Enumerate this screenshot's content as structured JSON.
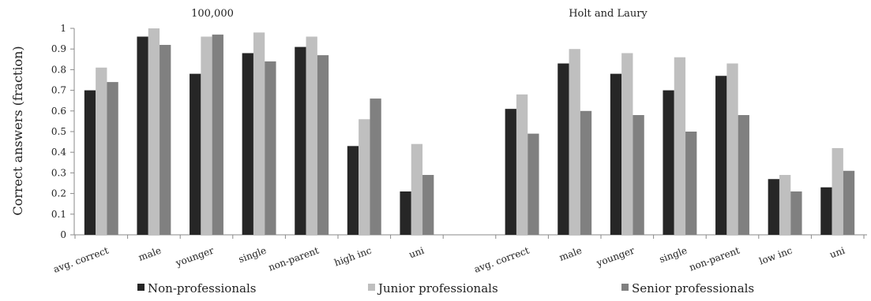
{
  "chart_data": {
    "type": "bar",
    "ylabel": "Correct answers (fraction)",
    "ylim": [
      0,
      1
    ],
    "yticks": [
      "0",
      "0.1",
      "0.2",
      "0.3",
      "0.4",
      "0.5",
      "0.6",
      "0.7",
      "0.8",
      "0.9",
      "1"
    ],
    "grid": false,
    "legend_position": "bottom",
    "series_names": [
      "Non-professionals",
      "Junior professionals",
      "Senior professionals"
    ],
    "colors": [
      "#262626",
      "#bfbfbf",
      "#808080"
    ],
    "panels": [
      {
        "title": "100,000",
        "categories": [
          "avg. correct",
          "male",
          "younger",
          "single",
          "non-parent",
          "high inc",
          "uni"
        ],
        "series": [
          {
            "name": "Non-professionals",
            "values": [
              0.7,
              0.96,
              0.78,
              0.88,
              0.91,
              0.43,
              0.21
            ]
          },
          {
            "name": "Junior professionals",
            "values": [
              0.81,
              1.0,
              0.96,
              0.98,
              0.96,
              0.56,
              0.44
            ]
          },
          {
            "name": "Senior professionals",
            "values": [
              0.74,
              0.92,
              0.97,
              0.84,
              0.87,
              0.66,
              0.29
            ]
          }
        ]
      },
      {
        "title": "Holt and Laury",
        "categories": [
          "avg. correct",
          "male",
          "younger",
          "single",
          "non-parent",
          "low inc",
          "uni"
        ],
        "series": [
          {
            "name": "Non-professionals",
            "values": [
              0.61,
              0.83,
              0.78,
              0.7,
              0.77,
              0.27,
              0.23
            ]
          },
          {
            "name": "Junior professionals",
            "values": [
              0.68,
              0.9,
              0.88,
              0.86,
              0.83,
              0.29,
              0.42
            ]
          },
          {
            "name": "Senior professionals",
            "values": [
              0.49,
              0.6,
              0.58,
              0.5,
              0.58,
              0.21,
              0.31
            ]
          }
        ]
      }
    ]
  }
}
